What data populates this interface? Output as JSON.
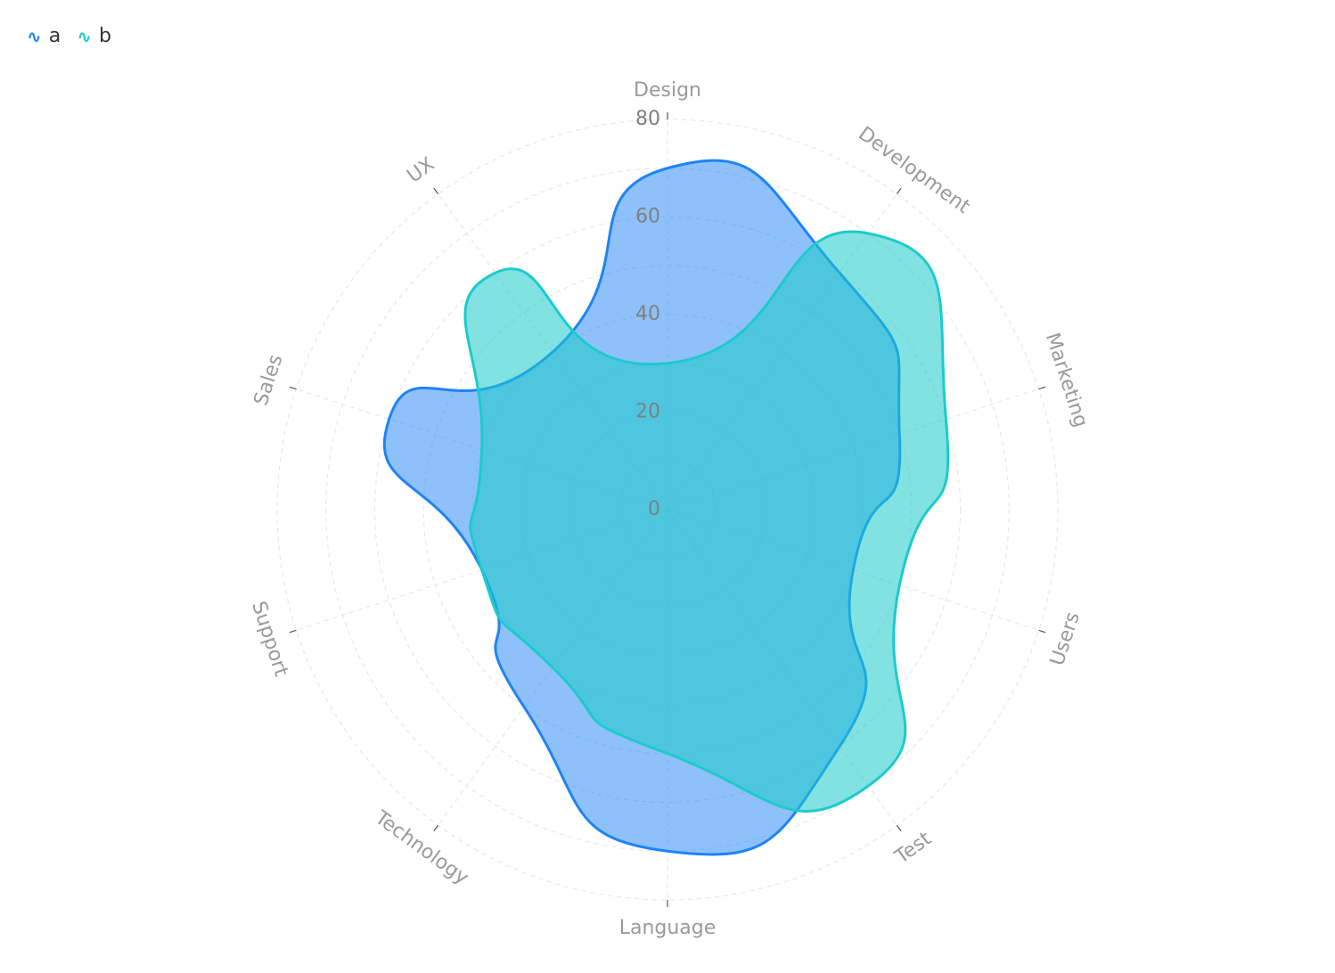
{
  "chart_data": {
    "type": "radar",
    "categories": [
      "Design",
      "Development",
      "Marketing",
      "Users",
      "Test",
      "Language",
      "Technology",
      "Support",
      "Sales",
      "UX"
    ],
    "series": [
      {
        "name": "a",
        "values": [
          70,
          60,
          50,
          40,
          60,
          70,
          50,
          40,
          60,
          40
        ],
        "color": "#1e83f7"
      },
      {
        "name": "b",
        "values": [
          30,
          70,
          60,
          50,
          70,
          50,
          40,
          40,
          40,
          60
        ],
        "color": "#1ccbcb"
      }
    ],
    "radial_ticks": [
      "0",
      "20",
      "40",
      "60",
      "80"
    ],
    "rmin": 0,
    "rmax": 80,
    "grid": true,
    "smooth": true,
    "legend_position": "top-left"
  },
  "colors": {
    "series_a_fill": "#1e83f7",
    "series_b_fill": "#1ccbcb",
    "grid": "#e3e3e3",
    "axis_label": "#9a9a9a",
    "tick_label": "#7f7f7f",
    "legend_text": "#333333"
  }
}
